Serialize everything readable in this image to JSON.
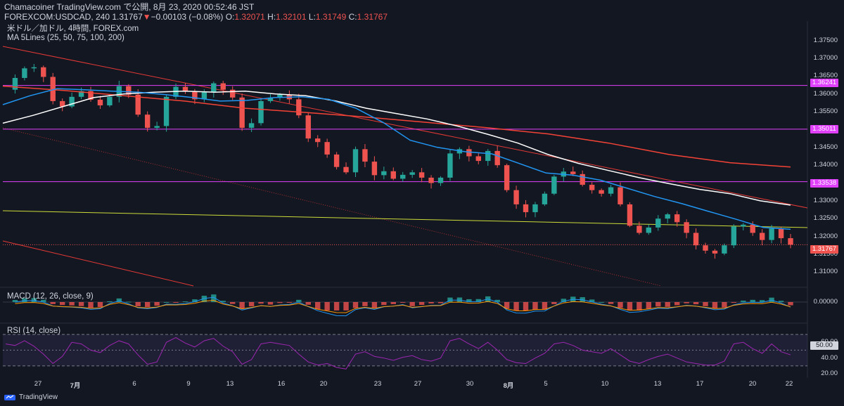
{
  "header": {
    "publish": "Chamacoiner TradingView.com で公開, 8月 23, 2020 00:52:46 JST",
    "symbol": "FOREXCOM:USDCAD, 240",
    "last": "1.31767",
    "change": "−0.00103 (−0.08%)",
    "o_label": "O:",
    "o": "1.32071",
    "h_label": "H:",
    "h": "1.32101",
    "l_label": "L:",
    "l": "1.31749",
    "c_label": "C:",
    "c": "1.31767"
  },
  "legend": {
    "pair": "米ドル／加ドル, 4時間, FOREX.com",
    "ma": "MA 5Lines (25, 50, 75, 100, 200)",
    "macd": "MACD (12, 26, close, 9)",
    "rsi": "RSI (14, close)"
  },
  "colors": {
    "bg": "#131722",
    "up": "#26a69a",
    "down": "#ef5350",
    "ma_blue": "#2196f3",
    "ma_white": "#ffffff",
    "ma_red": "#f44336",
    "hline": "#e040fb",
    "trend_red": "#e53935",
    "trend_yellow": "#cddc39",
    "macd": "#2196f3",
    "signal": "#ff9800",
    "rsi": "#9c27b0"
  },
  "chart_data": [
    {
      "type": "candlestick",
      "title": "米ドル／加ドル, 4時間, FOREX.com",
      "ylim": [
        1.3065,
        1.3785
      ],
      "y_ticks": [
        "1.37500",
        "1.37000",
        "1.36500",
        "1.36000",
        "1.35500",
        "1.35000",
        "1.34500",
        "1.34000",
        "1.33500",
        "1.33000",
        "1.32500",
        "1.32000",
        "1.31500",
        "1.31000"
      ],
      "x_labels": [
        "27",
        "7月",
        "6",
        "9",
        "13",
        "16",
        "20",
        "23",
        "27",
        "30",
        "8月",
        "5",
        "10",
        "13",
        "17",
        "20",
        "22"
      ],
      "close_path": [
        1.3612,
        1.3645,
        1.3672,
        1.3675,
        1.3648,
        1.358,
        1.3565,
        1.3592,
        1.3608,
        1.3584,
        1.3568,
        1.3592,
        1.3622,
        1.3598,
        1.3542,
        1.3505,
        1.351,
        1.3592,
        1.362,
        1.3608,
        1.3585,
        1.3605,
        1.363,
        1.3612,
        1.359,
        1.3505,
        1.3518,
        1.358,
        1.359,
        1.3598,
        1.3585,
        1.354,
        1.3475,
        1.3465,
        1.343,
        1.3395,
        1.338,
        1.3445,
        1.341,
        1.3372,
        1.3383,
        1.3362,
        1.3373,
        1.338,
        1.3365,
        1.335,
        1.3365,
        1.3433,
        1.3445,
        1.3425,
        1.3412,
        1.344,
        1.34,
        1.333,
        1.329,
        1.3268,
        1.329,
        1.332,
        1.3368,
        1.3382,
        1.3375,
        1.3345,
        1.333,
        1.332,
        1.3338,
        1.329,
        1.323,
        1.321,
        1.3225,
        1.325,
        1.3262,
        1.324,
        1.321,
        1.3175,
        1.316,
        1.3152,
        1.3175,
        1.3228,
        1.3233,
        1.321,
        1.319,
        1.3222,
        1.3195,
        1.31767
      ],
      "ma_white": [
        1.3518,
        1.354,
        1.3565,
        1.359,
        1.36,
        1.3605,
        1.3608,
        1.3605,
        1.3608,
        1.36,
        1.3595,
        1.358,
        1.356,
        1.3545,
        1.353,
        1.351,
        1.3487,
        1.3462,
        1.343,
        1.3405,
        1.3385,
        1.3365,
        1.3348,
        1.3332,
        1.332,
        1.33,
        1.3288
      ],
      "ma_blue": [
        1.357,
        1.3595,
        1.3615,
        1.3612,
        1.3608,
        1.3605,
        1.3598,
        1.359,
        1.358,
        1.3582,
        1.359,
        1.3592,
        1.3585,
        1.356,
        1.352,
        1.347,
        1.345,
        1.3438,
        1.3432,
        1.3405,
        1.3378,
        1.3372,
        1.3358,
        1.3335,
        1.3312,
        1.3292,
        1.327,
        1.3248,
        1.3225,
        1.322
      ],
      "ma_red": [
        1.3622,
        1.361,
        1.3595,
        1.358,
        1.356,
        1.3548,
        1.3535,
        1.352,
        1.3505,
        1.3488,
        1.3462,
        1.343,
        1.3407,
        1.3395
      ],
      "hlines": [
        1.36241,
        1.35011,
        1.33538
      ],
      "last_line": 1.31767,
      "labels": {
        "h1": "1.36241",
        "h2": "1.35011",
        "h3": "1.33538",
        "last": "1.31767"
      }
    },
    {
      "type": "line",
      "title": "MACD (12, 26, close, 9)",
      "ylim": [
        -0.007,
        0.007
      ],
      "y_ticks": [
        "0.00000"
      ]
    },
    {
      "type": "line",
      "title": "RSI (14, close)",
      "ylim": [
        20,
        80
      ],
      "y_ticks": [
        "60.00",
        "40.00",
        "20.00"
      ],
      "band": [
        30,
        70
      ],
      "mid": 50,
      "mid_label": "50.00",
      "values": [
        58,
        56,
        62,
        55,
        45,
        33,
        42,
        60,
        58,
        50,
        47,
        56,
        62,
        58,
        44,
        32,
        35,
        60,
        66,
        59,
        54,
        62,
        65,
        55,
        48,
        32,
        38,
        58,
        60,
        58,
        56,
        45,
        35,
        31,
        33,
        28,
        26,
        45,
        48,
        42,
        40,
        37,
        41,
        43,
        38,
        36,
        40,
        62,
        65,
        58,
        52,
        60,
        50,
        38,
        34,
        33,
        40,
        46,
        58,
        60,
        56,
        50,
        48,
        46,
        52,
        44,
        36,
        33,
        38,
        42,
        45,
        40,
        35,
        33,
        31,
        31,
        36,
        58,
        60,
        52,
        46,
        58,
        48,
        44
      ]
    }
  ],
  "footer": {
    "brand": "TradingView"
  }
}
